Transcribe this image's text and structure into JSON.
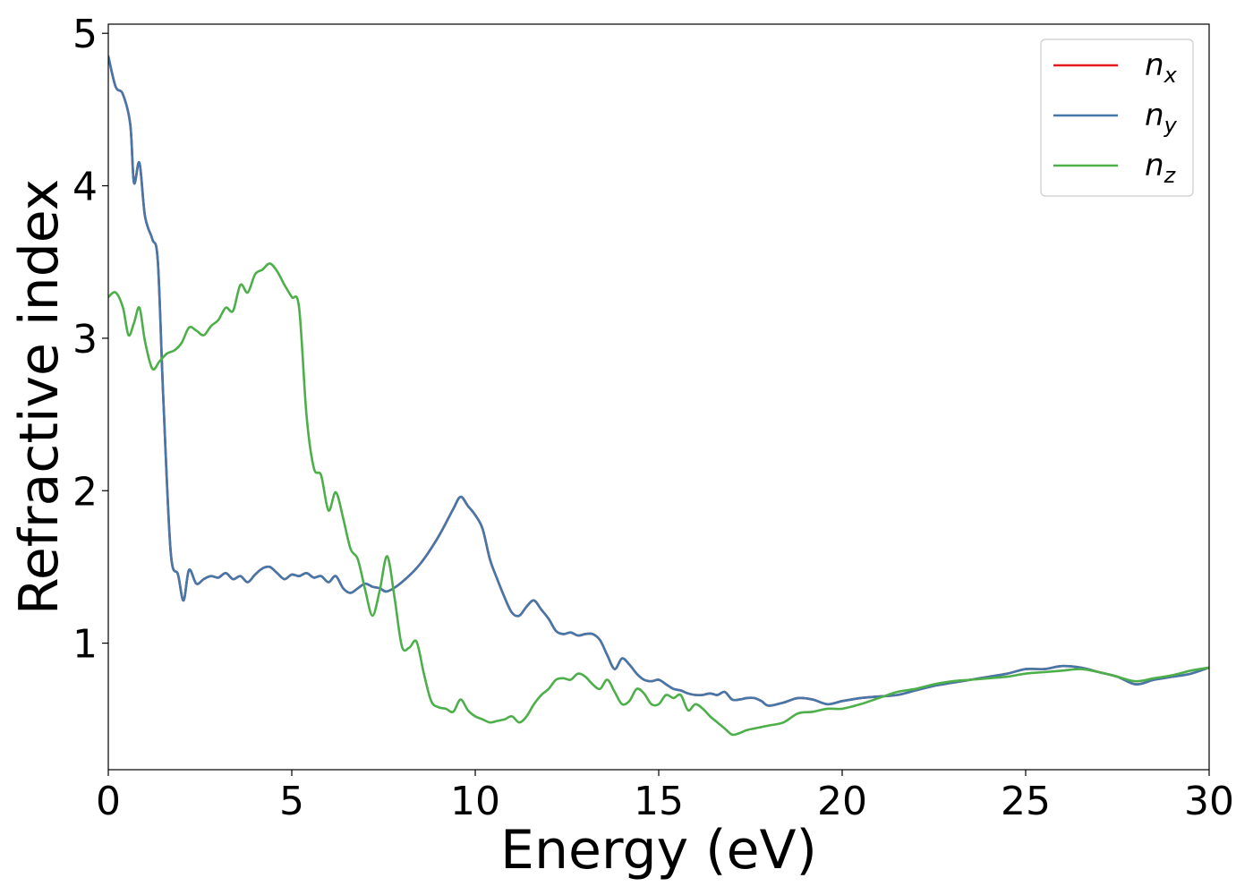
{
  "chart_data": {
    "type": "line",
    "xlabel": "Energy (eV)",
    "ylabel": "Refractive index",
    "xlim": [
      0,
      30
    ],
    "ylim": [
      0.17,
      5.06
    ],
    "xticks": [
      0,
      5,
      10,
      15,
      20,
      25,
      30
    ],
    "yticks": [
      1,
      2,
      3,
      4,
      5
    ],
    "grid": false,
    "legend_position": "top-right",
    "series": [
      {
        "name": "n_x",
        "legend": {
          "base": "n",
          "sub": "x"
        },
        "color": "#e41a1c",
        "x": [
          0.0,
          0.2,
          0.4,
          0.6,
          0.7,
          0.85,
          1.0,
          1.2,
          1.35,
          1.5,
          1.7,
          1.9,
          2.05,
          2.2,
          2.4,
          2.6,
          2.8,
          3.0,
          3.2,
          3.4,
          3.6,
          3.8,
          4.0,
          4.2,
          4.4,
          4.6,
          4.8,
          5.0,
          5.2,
          5.4,
          5.6,
          5.8,
          6.0,
          6.2,
          6.4,
          6.6,
          6.8,
          7.0,
          7.2,
          7.4,
          7.6,
          8.0,
          8.5,
          9.0,
          9.4,
          9.6,
          9.8,
          10.0,
          10.2,
          10.4,
          10.6,
          10.8,
          11.0,
          11.2,
          11.4,
          11.6,
          11.8,
          12.0,
          12.2,
          12.4,
          12.6,
          12.8,
          13.0,
          13.2,
          13.4,
          13.6,
          13.8,
          14.0,
          14.2,
          14.4,
          14.6,
          14.8,
          15.0,
          15.2,
          15.4,
          15.6,
          15.8,
          16.0,
          16.2,
          16.4,
          16.6,
          16.8,
          17.0,
          17.2,
          17.4,
          17.6,
          17.8,
          18.0,
          18.4,
          18.8,
          19.2,
          19.6,
          20.0,
          20.5,
          21.0,
          21.5,
          22.0,
          22.5,
          23.0,
          23.5,
          24.0,
          24.5,
          25.0,
          25.5,
          26.0,
          26.5,
          27.0,
          27.5,
          28.0,
          28.5,
          29.0,
          29.5,
          30.0
        ],
        "y": [
          4.85,
          4.65,
          4.6,
          4.4,
          4.02,
          4.15,
          3.8,
          3.65,
          3.5,
          2.6,
          1.6,
          1.45,
          1.28,
          1.48,
          1.39,
          1.42,
          1.44,
          1.43,
          1.46,
          1.42,
          1.44,
          1.4,
          1.45,
          1.49,
          1.5,
          1.46,
          1.42,
          1.45,
          1.44,
          1.46,
          1.43,
          1.44,
          1.4,
          1.44,
          1.36,
          1.33,
          1.36,
          1.39,
          1.37,
          1.36,
          1.34,
          1.4,
          1.52,
          1.7,
          1.88,
          1.96,
          1.9,
          1.84,
          1.75,
          1.55,
          1.42,
          1.3,
          1.2,
          1.18,
          1.24,
          1.28,
          1.22,
          1.16,
          1.08,
          1.06,
          1.07,
          1.05,
          1.06,
          1.06,
          1.02,
          0.92,
          0.83,
          0.9,
          0.86,
          0.8,
          0.76,
          0.75,
          0.76,
          0.73,
          0.7,
          0.69,
          0.67,
          0.66,
          0.66,
          0.67,
          0.66,
          0.68,
          0.63,
          0.63,
          0.64,
          0.64,
          0.62,
          0.59,
          0.61,
          0.64,
          0.63,
          0.6,
          0.62,
          0.64,
          0.65,
          0.66,
          0.69,
          0.72,
          0.74,
          0.76,
          0.78,
          0.8,
          0.83,
          0.83,
          0.85,
          0.84,
          0.81,
          0.78,
          0.73,
          0.76,
          0.78,
          0.8,
          0.84
        ]
      },
      {
        "name": "n_y",
        "legend": {
          "base": "n",
          "sub": "y"
        },
        "color": "#4477aa",
        "x": [
          0.0,
          0.2,
          0.4,
          0.6,
          0.7,
          0.85,
          1.0,
          1.2,
          1.35,
          1.5,
          1.7,
          1.9,
          2.05,
          2.2,
          2.4,
          2.6,
          2.8,
          3.0,
          3.2,
          3.4,
          3.6,
          3.8,
          4.0,
          4.2,
          4.4,
          4.6,
          4.8,
          5.0,
          5.2,
          5.4,
          5.6,
          5.8,
          6.0,
          6.2,
          6.4,
          6.6,
          6.8,
          7.0,
          7.2,
          7.4,
          7.6,
          8.0,
          8.5,
          9.0,
          9.4,
          9.6,
          9.8,
          10.0,
          10.2,
          10.4,
          10.6,
          10.8,
          11.0,
          11.2,
          11.4,
          11.6,
          11.8,
          12.0,
          12.2,
          12.4,
          12.6,
          12.8,
          13.0,
          13.2,
          13.4,
          13.6,
          13.8,
          14.0,
          14.2,
          14.4,
          14.6,
          14.8,
          15.0,
          15.2,
          15.4,
          15.6,
          15.8,
          16.0,
          16.2,
          16.4,
          16.6,
          16.8,
          17.0,
          17.2,
          17.4,
          17.6,
          17.8,
          18.0,
          18.4,
          18.8,
          19.2,
          19.6,
          20.0,
          20.5,
          21.0,
          21.5,
          22.0,
          22.5,
          23.0,
          23.5,
          24.0,
          24.5,
          25.0,
          25.5,
          26.0,
          26.5,
          27.0,
          27.5,
          28.0,
          28.5,
          29.0,
          29.5,
          30.0
        ],
        "y": [
          4.85,
          4.65,
          4.6,
          4.4,
          4.02,
          4.15,
          3.8,
          3.65,
          3.5,
          2.6,
          1.6,
          1.45,
          1.28,
          1.48,
          1.39,
          1.42,
          1.44,
          1.43,
          1.46,
          1.42,
          1.44,
          1.4,
          1.45,
          1.49,
          1.5,
          1.46,
          1.42,
          1.45,
          1.44,
          1.46,
          1.43,
          1.44,
          1.4,
          1.44,
          1.36,
          1.33,
          1.36,
          1.39,
          1.37,
          1.36,
          1.34,
          1.4,
          1.52,
          1.7,
          1.88,
          1.96,
          1.9,
          1.84,
          1.75,
          1.55,
          1.42,
          1.3,
          1.2,
          1.18,
          1.24,
          1.28,
          1.22,
          1.16,
          1.08,
          1.06,
          1.07,
          1.05,
          1.06,
          1.06,
          1.02,
          0.92,
          0.83,
          0.9,
          0.86,
          0.8,
          0.76,
          0.75,
          0.76,
          0.73,
          0.7,
          0.69,
          0.67,
          0.66,
          0.66,
          0.67,
          0.66,
          0.68,
          0.63,
          0.63,
          0.64,
          0.64,
          0.62,
          0.59,
          0.61,
          0.64,
          0.63,
          0.6,
          0.62,
          0.64,
          0.65,
          0.66,
          0.69,
          0.72,
          0.74,
          0.76,
          0.78,
          0.8,
          0.83,
          0.83,
          0.85,
          0.84,
          0.81,
          0.78,
          0.73,
          0.76,
          0.78,
          0.8,
          0.84
        ]
      },
      {
        "name": "n_z",
        "legend": {
          "base": "n",
          "sub": "z"
        },
        "color": "#4daf4a",
        "x": [
          0.0,
          0.2,
          0.4,
          0.55,
          0.7,
          0.85,
          1.0,
          1.2,
          1.4,
          1.6,
          1.8,
          2.0,
          2.2,
          2.4,
          2.6,
          2.8,
          3.0,
          3.2,
          3.4,
          3.6,
          3.8,
          4.0,
          4.2,
          4.4,
          4.6,
          4.8,
          5.0,
          5.2,
          5.4,
          5.6,
          5.8,
          6.0,
          6.2,
          6.4,
          6.6,
          6.8,
          7.0,
          7.2,
          7.4,
          7.6,
          7.8,
          8.0,
          8.2,
          8.4,
          8.6,
          8.8,
          9.0,
          9.2,
          9.4,
          9.6,
          9.8,
          10.0,
          10.2,
          10.4,
          10.6,
          10.8,
          11.0,
          11.2,
          11.4,
          11.6,
          11.8,
          12.0,
          12.2,
          12.4,
          12.6,
          12.8,
          13.0,
          13.2,
          13.4,
          13.6,
          13.8,
          14.0,
          14.2,
          14.4,
          14.6,
          14.8,
          15.0,
          15.2,
          15.4,
          15.6,
          15.8,
          16.0,
          16.2,
          16.4,
          16.6,
          16.8,
          17.0,
          17.2,
          17.4,
          17.6,
          17.8,
          18.0,
          18.4,
          18.8,
          19.2,
          19.6,
          20.0,
          20.5,
          21.0,
          21.5,
          22.0,
          22.5,
          23.0,
          23.5,
          24.0,
          24.5,
          25.0,
          25.5,
          26.0,
          26.5,
          27.0,
          27.5,
          28.0,
          28.5,
          29.0,
          29.5,
          30.0
        ],
        "y": [
          3.27,
          3.3,
          3.2,
          3.02,
          3.1,
          3.2,
          2.98,
          2.8,
          2.85,
          2.9,
          2.92,
          2.97,
          3.07,
          3.05,
          3.02,
          3.08,
          3.12,
          3.2,
          3.18,
          3.35,
          3.3,
          3.42,
          3.45,
          3.49,
          3.44,
          3.35,
          3.27,
          3.2,
          2.5,
          2.15,
          2.1,
          1.87,
          1.99,
          1.82,
          1.62,
          1.55,
          1.35,
          1.18,
          1.35,
          1.57,
          1.3,
          0.98,
          0.97,
          1.01,
          0.8,
          0.62,
          0.58,
          0.57,
          0.55,
          0.63,
          0.56,
          0.52,
          0.5,
          0.48,
          0.49,
          0.5,
          0.52,
          0.48,
          0.52,
          0.6,
          0.66,
          0.7,
          0.76,
          0.77,
          0.76,
          0.8,
          0.78,
          0.73,
          0.7,
          0.76,
          0.68,
          0.6,
          0.62,
          0.7,
          0.67,
          0.6,
          0.6,
          0.66,
          0.64,
          0.66,
          0.56,
          0.6,
          0.57,
          0.52,
          0.48,
          0.44,
          0.4,
          0.41,
          0.43,
          0.44,
          0.45,
          0.46,
          0.48,
          0.54,
          0.55,
          0.57,
          0.57,
          0.6,
          0.64,
          0.68,
          0.7,
          0.73,
          0.75,
          0.76,
          0.77,
          0.78,
          0.8,
          0.81,
          0.82,
          0.83,
          0.81,
          0.78,
          0.75,
          0.77,
          0.79,
          0.82,
          0.84
        ]
      }
    ]
  }
}
